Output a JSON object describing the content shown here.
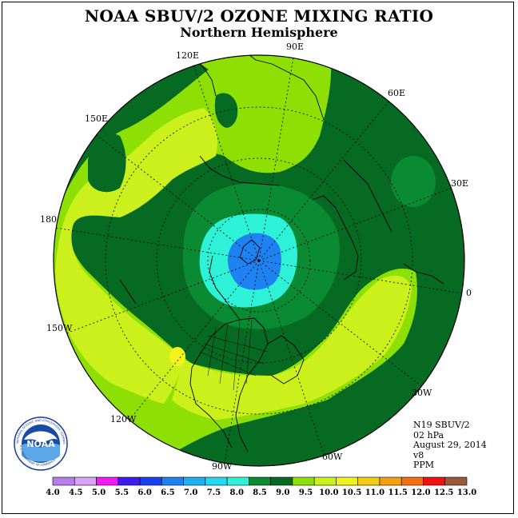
{
  "title": "NOAA SBUV/2 OZONE MIXING RATIO",
  "subtitle": "Northern Hemisphere",
  "longitude_labels": [
    {
      "id": "lon-90e",
      "text": "90E"
    },
    {
      "id": "lon-60e",
      "text": "60E"
    },
    {
      "id": "lon-30e",
      "text": "30E"
    },
    {
      "id": "lon-0",
      "text": "0"
    },
    {
      "id": "lon-30w",
      "text": "30W"
    },
    {
      "id": "lon-60w",
      "text": "60W"
    },
    {
      "id": "lon-90w",
      "text": "90W"
    },
    {
      "id": "lon-120w",
      "text": "120W"
    },
    {
      "id": "lon-150w",
      "text": "150W"
    },
    {
      "id": "lon-180",
      "text": "180"
    },
    {
      "id": "lon-150e",
      "text": "150E"
    },
    {
      "id": "lon-120e",
      "text": "120E"
    }
  ],
  "info": {
    "satellite": "N19 SBUV/2",
    "pressure": "02 hPa",
    "date": "August 29, 2014",
    "version": "v8",
    "units": "PPM"
  },
  "logo": {
    "text": "NOAA",
    "ring_text": "NATIONAL OCEANIC AND ATMOSPHERIC ADMINISTRATION",
    "ring_text_bottom": "U.S. DEPARTMENT OF COMMERCE"
  },
  "colorbar": {
    "labels": [
      "4.0",
      "4.5",
      "5.0",
      "5.5",
      "6.0",
      "6.5",
      "7.0",
      "7.5",
      "8.0",
      "8.5",
      "9.0",
      "9.5",
      "10.0",
      "10.5",
      "11.0",
      "11.5",
      "12.0",
      "12.5",
      "13.0"
    ],
    "colors": [
      "#b87ee8",
      "#d9a4f4",
      "#f21af2",
      "#3d1cf2",
      "#1a3ef2",
      "#1e82f2",
      "#1fb0f2",
      "#24d8f2",
      "#2ef2d8",
      "#0a8a32",
      "#066a22",
      "#8ee004",
      "#ccf01c",
      "#f2f21c",
      "#f2cc10",
      "#f2a010",
      "#f27010",
      "#f21010",
      "#9a5a3a"
    ]
  },
  "map_colors": {
    "band_8_5_9": "#066a22",
    "band_8_8_5": "#0a8a32",
    "band_9_9_5": "#8ee004",
    "band_9_5_10": "#ccf01c",
    "band_10_10_5": "#f2f21c",
    "band_7_5_8": "#2ef2d8",
    "band_6_5_7": "#1e82f2"
  }
}
